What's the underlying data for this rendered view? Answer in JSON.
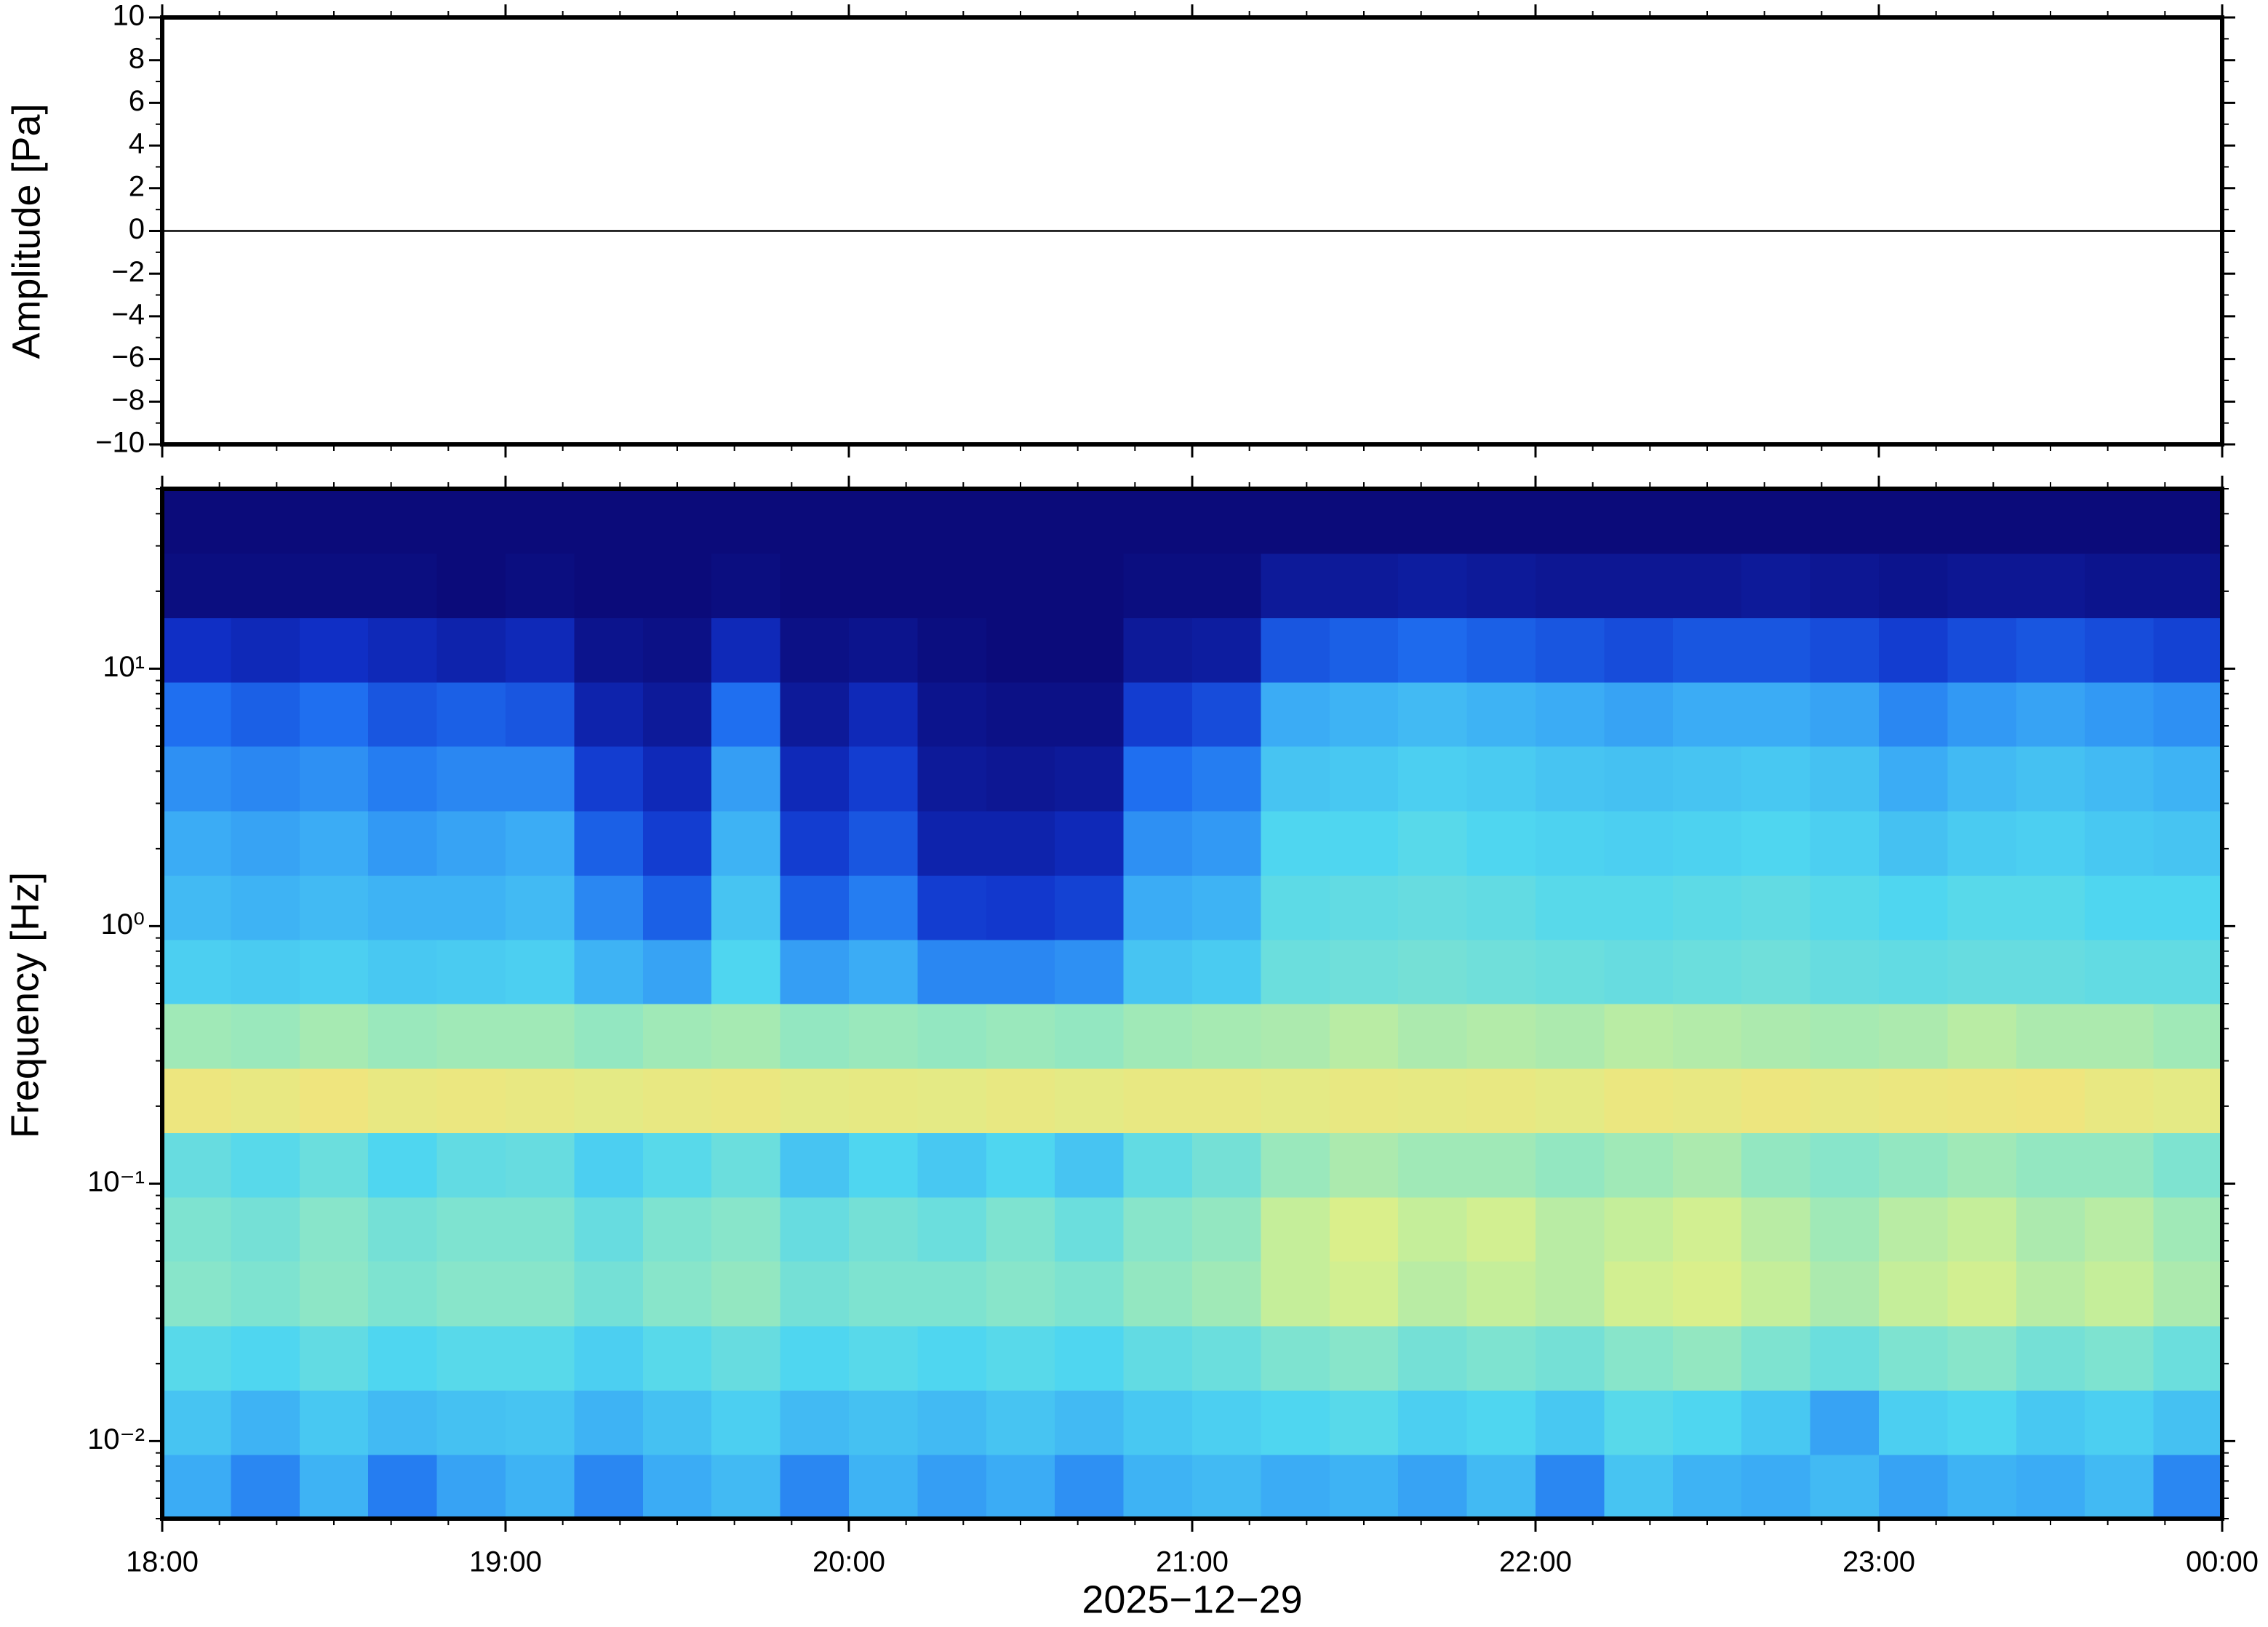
{
  "chart_data": [
    {
      "type": "line",
      "ylabel": "Amplitude [Pa]",
      "xlim": [
        18,
        24
      ],
      "ylim": [
        -10,
        10
      ],
      "yticks": [
        {
          "value": -10,
          "label": "−10"
        },
        {
          "value": -8,
          "label": "−8"
        },
        {
          "value": -6,
          "label": "−6"
        },
        {
          "value": -4,
          "label": "−4"
        },
        {
          "value": -2,
          "label": "−2"
        },
        0,
        2,
        4,
        6,
        8,
        10
      ],
      "x": [
        18,
        19,
        20,
        21,
        22,
        23,
        24
      ],
      "series": [
        {
          "color": "#000000",
          "values": [
            0,
            0,
            0,
            0,
            0,
            0,
            0
          ]
        }
      ]
    },
    {
      "type": "heatmap",
      "ylabel": "Frequency [Hz]",
      "xlabel": "2025−12−29",
      "xlim": [
        18,
        24
      ],
      "xticks": [
        {
          "value": 18,
          "label": "18:00"
        },
        {
          "value": 19,
          "label": "19:00"
        },
        {
          "value": 20,
          "label": "20:00"
        },
        {
          "value": 21,
          "label": "21:00"
        },
        {
          "value": 22,
          "label": "22:00"
        },
        {
          "value": 23,
          "label": "23:00"
        },
        {
          "value": 24,
          "label": "00:00"
        }
      ],
      "ylim": [
        0.005,
        50
      ],
      "log_y": true,
      "yticks": [
        {
          "value": 0.01,
          "label": "10⁻²"
        },
        {
          "value": 0.1,
          "label": "10⁻¹"
        },
        {
          "value": 1,
          "label": "10⁰"
        },
        {
          "value": 10,
          "label": "10¹"
        }
      ],
      "colormap": [
        "#0b0b7a",
        "#1030c8",
        "#1f6ff0",
        "#3aaaf5",
        "#4fd6f0",
        "#8ae6c8",
        "#d8f08c",
        "#f5e27a",
        "#f5a050"
      ],
      "x": [
        18.1,
        18.3,
        18.5,
        18.7,
        18.9,
        19.1,
        19.3,
        19.5,
        19.7,
        19.9,
        20.1,
        20.3,
        20.5,
        20.7,
        20.9,
        21.1,
        21.3,
        21.5,
        21.7,
        21.9,
        22.1,
        22.3,
        22.5,
        22.7,
        22.9,
        23.1,
        23.3,
        23.5,
        23.7,
        23.9
      ],
      "y": [
        0.00667,
        0.01186,
        0.02109,
        0.0375,
        0.0667,
        0.1186,
        0.2109,
        0.375,
        0.667,
        1.186,
        2.109,
        3.75,
        6.67,
        11.86,
        21.09,
        37.5
      ],
      "z": [
        [
          0.38,
          0.3,
          0.4,
          0.28,
          0.36,
          0.4,
          0.3,
          0.38,
          0.42,
          0.3,
          0.4,
          0.35,
          0.38,
          0.32,
          0.4,
          0.42,
          0.38,
          0.4,
          0.36,
          0.42,
          0.3,
          0.45,
          0.4,
          0.38,
          0.42,
          0.36,
          0.4,
          0.38,
          0.42,
          0.3
        ],
        [
          0.45,
          0.4,
          0.46,
          0.42,
          0.44,
          0.45,
          0.4,
          0.44,
          0.48,
          0.42,
          0.44,
          0.42,
          0.45,
          0.42,
          0.46,
          0.48,
          0.5,
          0.52,
          0.48,
          0.5,
          0.46,
          0.52,
          0.5,
          0.46,
          0.36,
          0.48,
          0.5,
          0.46,
          0.48,
          0.44
        ],
        [
          0.52,
          0.5,
          0.54,
          0.5,
          0.52,
          0.52,
          0.48,
          0.52,
          0.55,
          0.5,
          0.52,
          0.5,
          0.52,
          0.5,
          0.54,
          0.56,
          0.6,
          0.62,
          0.58,
          0.6,
          0.58,
          0.62,
          0.64,
          0.6,
          0.56,
          0.6,
          0.62,
          0.58,
          0.6,
          0.56
        ],
        [
          0.62,
          0.6,
          0.63,
          0.6,
          0.62,
          0.62,
          0.58,
          0.62,
          0.64,
          0.58,
          0.6,
          0.6,
          0.62,
          0.6,
          0.64,
          0.66,
          0.72,
          0.74,
          0.7,
          0.72,
          0.7,
          0.74,
          0.76,
          0.72,
          0.68,
          0.72,
          0.74,
          0.7,
          0.72,
          0.68
        ],
        [
          0.6,
          0.58,
          0.62,
          0.58,
          0.6,
          0.6,
          0.55,
          0.6,
          0.62,
          0.55,
          0.58,
          0.56,
          0.6,
          0.56,
          0.62,
          0.64,
          0.72,
          0.76,
          0.72,
          0.74,
          0.7,
          0.72,
          0.74,
          0.7,
          0.66,
          0.7,
          0.72,
          0.68,
          0.7,
          0.66
        ],
        [
          0.55,
          0.52,
          0.56,
          0.5,
          0.54,
          0.55,
          0.48,
          0.52,
          0.56,
          0.45,
          0.5,
          0.46,
          0.5,
          0.45,
          0.54,
          0.58,
          0.65,
          0.68,
          0.66,
          0.66,
          0.64,
          0.66,
          0.68,
          0.64,
          0.62,
          0.64,
          0.66,
          0.64,
          0.64,
          0.6
        ],
        [
          0.84,
          0.82,
          0.85,
          0.82,
          0.83,
          0.82,
          0.8,
          0.82,
          0.83,
          0.8,
          0.81,
          0.8,
          0.82,
          0.8,
          0.82,
          0.82,
          0.8,
          0.82,
          0.81,
          0.82,
          0.8,
          0.83,
          0.82,
          0.84,
          0.82,
          0.83,
          0.84,
          0.85,
          0.82,
          0.8
        ],
        [
          0.66,
          0.65,
          0.67,
          0.65,
          0.66,
          0.66,
          0.64,
          0.66,
          0.67,
          0.64,
          0.65,
          0.64,
          0.65,
          0.64,
          0.66,
          0.67,
          0.68,
          0.7,
          0.68,
          0.69,
          0.68,
          0.7,
          0.69,
          0.68,
          0.67,
          0.68,
          0.7,
          0.68,
          0.68,
          0.66
        ],
        [
          0.48,
          0.47,
          0.48,
          0.46,
          0.47,
          0.48,
          0.4,
          0.36,
          0.5,
          0.35,
          0.38,
          0.3,
          0.3,
          0.32,
          0.45,
          0.47,
          0.56,
          0.57,
          0.58,
          0.57,
          0.56,
          0.55,
          0.56,
          0.57,
          0.55,
          0.54,
          0.55,
          0.55,
          0.54,
          0.54
        ],
        [
          0.42,
          0.4,
          0.42,
          0.4,
          0.4,
          0.42,
          0.3,
          0.22,
          0.45,
          0.22,
          0.28,
          0.15,
          0.14,
          0.16,
          0.38,
          0.4,
          0.53,
          0.54,
          0.55,
          0.54,
          0.52,
          0.52,
          0.53,
          0.54,
          0.52,
          0.5,
          0.52,
          0.52,
          0.5,
          0.5
        ],
        [
          0.38,
          0.36,
          0.38,
          0.34,
          0.36,
          0.38,
          0.22,
          0.15,
          0.4,
          0.15,
          0.2,
          0.08,
          0.08,
          0.1,
          0.32,
          0.34,
          0.5,
          0.5,
          0.52,
          0.5,
          0.49,
          0.48,
          0.49,
          0.5,
          0.48,
          0.44,
          0.47,
          0.48,
          0.46,
          0.45
        ],
        [
          0.32,
          0.3,
          0.32,
          0.28,
          0.3,
          0.3,
          0.15,
          0.1,
          0.35,
          0.1,
          0.15,
          0.05,
          0.04,
          0.05,
          0.25,
          0.28,
          0.45,
          0.46,
          0.48,
          0.47,
          0.45,
          0.44,
          0.45,
          0.46,
          0.44,
          0.38,
          0.42,
          0.44,
          0.42,
          0.4
        ],
        [
          0.25,
          0.22,
          0.25,
          0.2,
          0.22,
          0.2,
          0.08,
          0.05,
          0.25,
          0.05,
          0.1,
          0.03,
          0.02,
          0.02,
          0.15,
          0.18,
          0.38,
          0.4,
          0.42,
          0.4,
          0.38,
          0.36,
          0.38,
          0.38,
          0.36,
          0.3,
          0.34,
          0.36,
          0.34,
          0.32
        ],
        [
          0.12,
          0.1,
          0.12,
          0.1,
          0.08,
          0.1,
          0.03,
          0.02,
          0.1,
          0.02,
          0.03,
          0.01,
          0,
          0,
          0.05,
          0.06,
          0.2,
          0.22,
          0.24,
          0.22,
          0.2,
          0.18,
          0.2,
          0.2,
          0.18,
          0.15,
          0.18,
          0.2,
          0.18,
          0.16
        ],
        [
          0.01,
          0.01,
          0.01,
          0.01,
          0,
          0.01,
          0,
          0,
          0.01,
          0,
          0,
          0,
          0,
          0,
          0.01,
          0.01,
          0.05,
          0.05,
          0.06,
          0.05,
          0.04,
          0.04,
          0.04,
          0.05,
          0.04,
          0.03,
          0.04,
          0.04,
          0.03,
          0.03
        ],
        [
          0,
          0,
          0,
          0,
          0,
          0,
          0,
          0,
          0,
          0,
          0,
          0,
          0,
          0,
          0,
          0,
          0,
          0,
          0,
          0,
          0,
          0,
          0,
          0,
          0,
          0,
          0,
          0,
          0,
          0
        ]
      ]
    }
  ]
}
